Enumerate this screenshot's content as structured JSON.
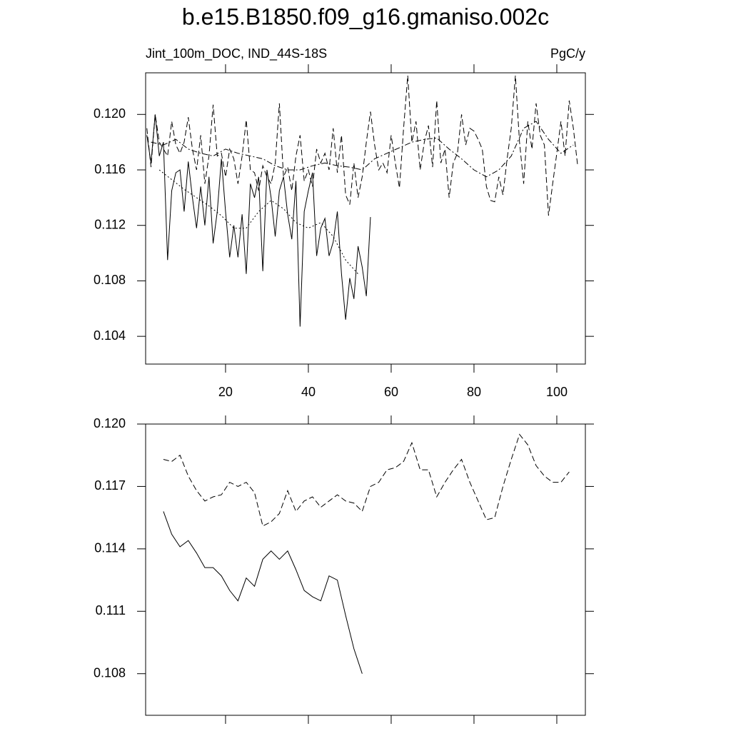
{
  "chart_data": [
    {
      "type": "line",
      "title": "b.e15.B1850.f09_g16.gmaniso.002c",
      "subtitle": "Jint_100m_DOC, IND_44S-18S",
      "units": "PgC/y",
      "xlim": [
        0.7,
        106.9
      ],
      "xticks": [
        20,
        40,
        60,
        80,
        100
      ],
      "ylim": [
        0.102,
        0.123
      ],
      "yticks": [
        0.104,
        0.108,
        0.112,
        0.116,
        {
          "value": 0.12,
          "label": "0.120"
        }
      ],
      "series": [
        {
          "color": "#000000",
          "dash": "solid",
          "x": [
            1,
            2,
            3,
            4,
            5,
            6,
            7,
            8,
            9,
            10,
            11,
            12,
            13,
            14,
            15,
            16,
            17,
            18,
            19,
            20,
            21,
            22,
            23,
            24,
            25,
            26,
            27,
            28,
            29,
            30,
            31,
            32,
            33,
            34,
            35,
            36,
            37,
            38,
            39,
            40,
            41,
            42,
            43,
            44,
            45,
            46,
            47,
            48,
            49,
            50,
            51,
            52,
            53,
            54,
            55
          ],
          "values": [
            0.1185,
            0.1165,
            0.12,
            0.117,
            0.118,
            0.1095,
            0.1145,
            0.1158,
            0.116,
            0.113,
            0.1166,
            0.114,
            0.1118,
            0.1148,
            0.112,
            0.1155,
            0.1107,
            0.113,
            0.1168,
            0.113,
            0.1097,
            0.112,
            0.1097,
            0.1128,
            0.1085,
            0.115,
            0.114,
            0.1155,
            0.1087,
            0.116,
            0.114,
            0.1112,
            0.1145,
            0.1155,
            0.1128,
            0.111,
            0.1152,
            0.1047,
            0.113,
            0.1145,
            0.1158,
            0.1098,
            0.1118,
            0.1125,
            0.1098,
            0.1108,
            0.113,
            0.1085,
            0.1052,
            0.1082,
            0.1067,
            0.1105,
            0.109,
            0.1069,
            0.1126
          ]
        },
        {
          "color": "#000000",
          "dash": "dashed",
          "x": [
            1,
            2,
            3,
            4,
            5,
            6,
            7,
            8,
            9,
            10,
            11,
            12,
            13,
            14,
            15,
            16,
            17,
            18,
            19,
            20,
            21,
            22,
            23,
            24,
            25,
            26,
            27,
            28,
            29,
            30,
            31,
            32,
            33,
            34,
            35,
            36,
            37,
            38,
            39,
            40,
            41,
            42,
            43,
            44,
            45,
            46,
            47,
            48,
            49,
            50,
            51,
            52,
            53,
            54,
            55,
            56,
            57,
            58,
            59,
            60,
            61,
            62,
            63,
            64,
            65,
            66,
            67,
            68,
            69,
            70,
            71,
            72,
            73,
            74,
            75,
            76,
            77,
            78,
            79,
            80,
            81,
            82,
            83,
            84,
            85,
            86,
            87,
            88,
            89,
            90,
            91,
            92,
            93,
            94,
            95,
            96,
            97,
            98,
            99,
            100,
            101,
            102,
            103,
            104,
            105
          ],
          "values": [
            0.119,
            0.1162,
            0.12,
            0.118,
            0.1175,
            0.117,
            0.1195,
            0.1178,
            0.1172,
            0.118,
            0.1198,
            0.1175,
            0.116,
            0.1185,
            0.115,
            0.117,
            0.1207,
            0.117,
            0.1172,
            0.1155,
            0.1175,
            0.1168,
            0.115,
            0.117,
            0.1196,
            0.116,
            0.1158,
            0.1145,
            0.1163,
            0.1155,
            0.115,
            0.1165,
            0.1208,
            0.1155,
            0.1162,
            0.1145,
            0.117,
            0.1185,
            0.1152,
            0.116,
            0.1148,
            0.1175,
            0.1165,
            0.1172,
            0.116,
            0.119,
            0.1158,
            0.1185,
            0.1142,
            0.1135,
            0.1165,
            0.114,
            0.1155,
            0.118,
            0.1202,
            0.1178,
            0.116,
            0.1165,
            0.1158,
            0.1185,
            0.1165,
            0.1147,
            0.119,
            0.1228,
            0.118,
            0.1195,
            0.116,
            0.118,
            0.1192,
            0.1162,
            0.121,
            0.1165,
            0.1175,
            0.114,
            0.1165,
            0.1172,
            0.12,
            0.1178,
            0.119,
            0.1188,
            0.1182,
            0.1175,
            0.1148,
            0.1138,
            0.1137,
            0.1155,
            0.1142,
            0.1168,
            0.119,
            0.1228,
            0.118,
            0.115,
            0.1195,
            0.1175,
            0.1208,
            0.1185,
            0.1178,
            0.1127,
            0.115,
            0.1172,
            0.1195,
            0.117,
            0.121,
            0.119,
            0.1164
          ]
        },
        {
          "color": "#000000",
          "dash": "dashdot",
          "x": [
            2,
            5,
            8,
            11,
            14,
            17,
            20,
            23,
            26,
            29,
            32,
            35,
            38,
            41,
            44,
            47,
            50,
            53,
            56,
            59,
            62,
            65,
            68,
            71,
            74,
            77,
            80,
            83,
            86,
            89,
            92,
            95,
            98,
            101,
            104
          ],
          "values": [
            0.118,
            0.1178,
            0.1182,
            0.1175,
            0.1172,
            0.117,
            0.1175,
            0.1172,
            0.117,
            0.1168,
            0.1163,
            0.116,
            0.116,
            0.1163,
            0.1165,
            0.1163,
            0.1162,
            0.116,
            0.1168,
            0.1172,
            0.1176,
            0.118,
            0.1182,
            0.1183,
            0.1175,
            0.1168,
            0.116,
            0.1155,
            0.116,
            0.117,
            0.119,
            0.1195,
            0.1182,
            0.1172,
            0.1178
          ]
        },
        {
          "color": "#000000",
          "dash": "dotted",
          "x": [
            4,
            7,
            10,
            13,
            16,
            19,
            22,
            25,
            28,
            31,
            34,
            37,
            40,
            43,
            46,
            49,
            52
          ],
          "values": [
            0.116,
            0.1153,
            0.1146,
            0.114,
            0.1134,
            0.1127,
            0.1118,
            0.1118,
            0.113,
            0.1138,
            0.1132,
            0.1122,
            0.1118,
            0.1122,
            0.1112,
            0.1095,
            0.1085
          ]
        }
      ]
    },
    {
      "type": "line",
      "xlim": [
        0.7,
        106.9
      ],
      "xticks": [
        20,
        40,
        60,
        80,
        100
      ],
      "ylim": [
        0.106,
        0.12
      ],
      "yticks": [
        0.108,
        0.111,
        0.114,
        0.117,
        {
          "value": 0.12,
          "label": "0.120"
        }
      ],
      "series": [
        {
          "color": "#000000",
          "dash": "solid",
          "x": [
            5,
            7,
            9,
            11,
            13,
            15,
            17,
            19,
            21,
            23,
            25,
            27,
            29,
            31,
            33,
            35,
            37,
            39,
            41,
            43,
            45,
            47,
            49,
            51,
            53
          ],
          "values": [
            0.1158,
            0.1147,
            0.1141,
            0.1144,
            0.1138,
            0.1131,
            0.1131,
            0.1127,
            0.112,
            0.1115,
            0.1126,
            0.1122,
            0.1135,
            0.1139,
            0.1135,
            0.1139,
            0.113,
            0.112,
            0.1117,
            0.1115,
            0.1127,
            0.1125,
            0.1108,
            0.1092,
            0.108
          ]
        },
        {
          "color": "#000000",
          "dash": "dashed",
          "x": [
            5,
            7,
            9,
            11,
            13,
            15,
            17,
            19,
            21,
            23,
            25,
            27,
            29,
            31,
            33,
            35,
            37,
            39,
            41,
            43,
            45,
            47,
            49,
            51,
            53,
            55,
            57,
            59,
            61,
            63,
            65,
            67,
            69,
            71,
            73,
            75,
            77,
            79,
            81,
            83,
            85,
            87,
            89,
            91,
            93,
            95,
            97,
            99,
            101,
            103
          ],
          "values": [
            0.1183,
            0.1182,
            0.1185,
            0.1175,
            0.1168,
            0.1163,
            0.1165,
            0.1166,
            0.1172,
            0.117,
            0.1172,
            0.1167,
            0.1151,
            0.1153,
            0.1157,
            0.1168,
            0.1158,
            0.1163,
            0.1165,
            0.116,
            0.1163,
            0.1166,
            0.1163,
            0.1162,
            0.1158,
            0.117,
            0.1172,
            0.1178,
            0.1179,
            0.1182,
            0.1191,
            0.1178,
            0.1178,
            0.1165,
            0.1172,
            0.1178,
            0.1183,
            0.1172,
            0.1163,
            0.1154,
            0.1155,
            0.117,
            0.1183,
            0.1195,
            0.119,
            0.118,
            0.1175,
            0.1172,
            0.1172,
            0.1177
          ]
        }
      ]
    }
  ]
}
